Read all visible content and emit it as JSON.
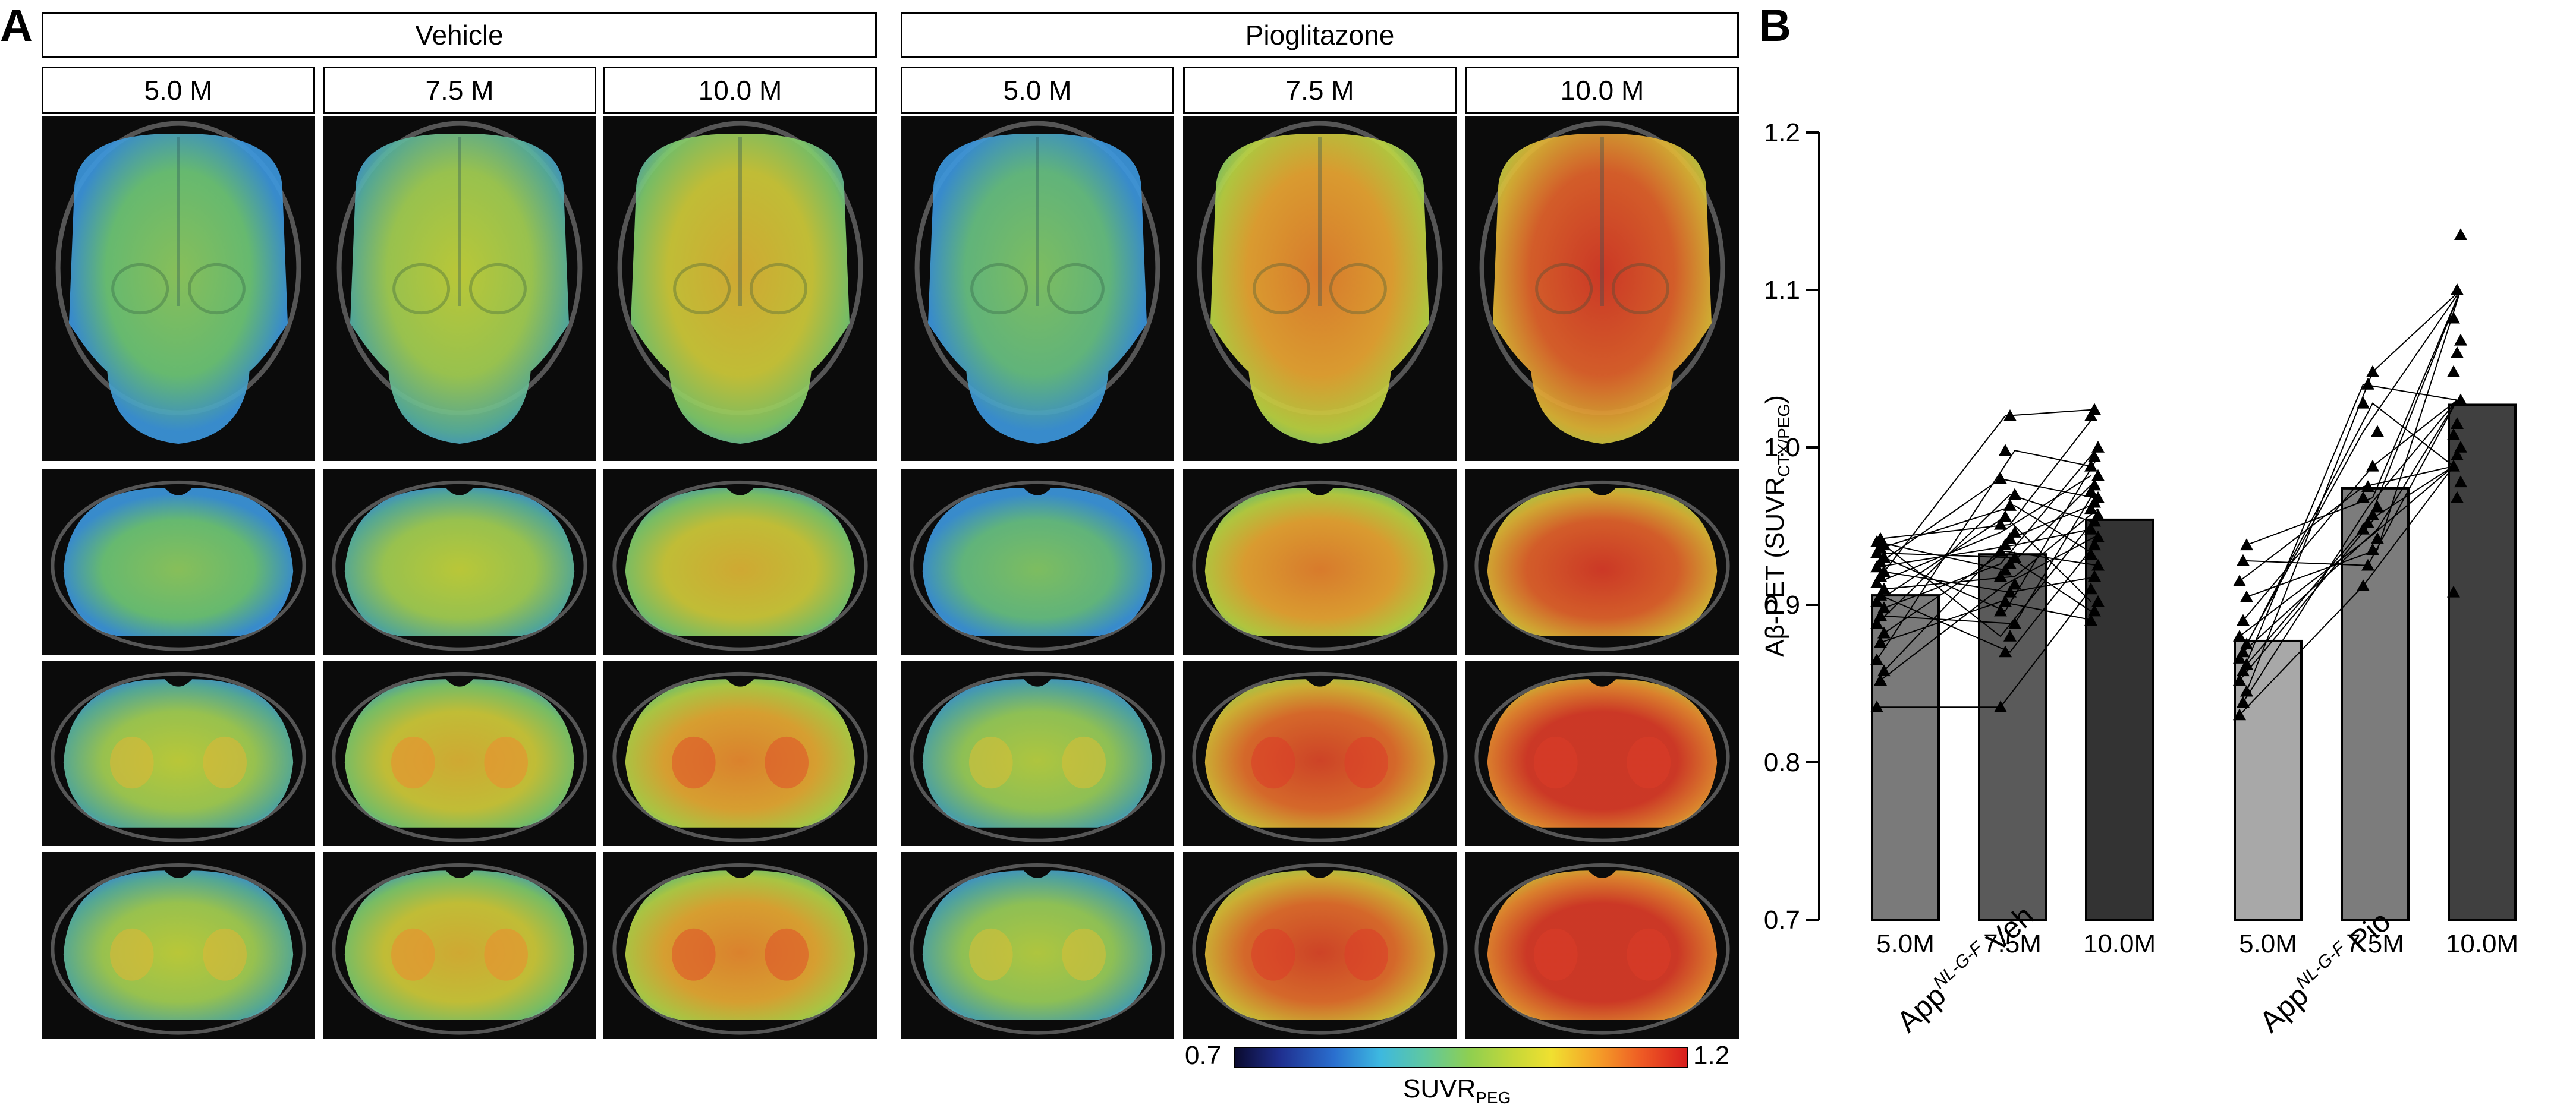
{
  "panel_a": {
    "letter": "A",
    "groups": [
      "Vehicle",
      "Pioglitazone"
    ],
    "timepoints": [
      "5.0 M",
      "7.5 M",
      "10.0 M",
      "5.0 M",
      "7.5 M",
      "10.0 M"
    ],
    "colorbar": {
      "min": "0.7",
      "max": "1.2",
      "label": "SUVR",
      "label_sub": "PEG"
    }
  },
  "panel_b": {
    "letter": "B"
  },
  "chart_data": {
    "type": "bar",
    "ylabel_main": "Aβ-PET (SUVR",
    "ylabel_sub": "CTX/PEG",
    "ylabel_end": ")",
    "ylim": [
      0.7,
      1.2
    ],
    "yticks": [
      "0.7",
      "0.8",
      "0.9",
      "1.0",
      "1.1",
      "1.2"
    ],
    "categories": [
      "5.0M",
      "7.5M",
      "10.0M",
      "5.0M",
      "7.5M",
      "10.0M"
    ],
    "group_labels": [
      {
        "main": "App",
        "sup": "NL-G-F",
        "rest": " Veh"
      },
      {
        "main": "App",
        "sup": "NL-G-F",
        "rest": " Pio"
      }
    ],
    "values": [
      0.906,
      0.932,
      0.954,
      0.877,
      0.974,
      1.027
    ],
    "bar_colors": [
      "#7a7a7a",
      "#5a5a5a",
      "#333333",
      "#a8a8a8",
      "#7c7c7c",
      "#404040"
    ],
    "individual_points": [
      {
        "group": "Veh",
        "5.0M": [
          0.835,
          0.852,
          0.858,
          0.865,
          0.876,
          0.882,
          0.888,
          0.893,
          0.898,
          0.902,
          0.906,
          0.91,
          0.914,
          0.918,
          0.921,
          0.924,
          0.927,
          0.93,
          0.933,
          0.936,
          0.938,
          0.94,
          0.942
        ],
        "7.5M": [
          0.835,
          0.87,
          0.88,
          0.888,
          0.896,
          0.902,
          0.908,
          0.913,
          0.918,
          0.922,
          0.926,
          0.93,
          0.934,
          0.938,
          0.942,
          0.946,
          0.951,
          0.956,
          0.963,
          0.97,
          0.98,
          0.998,
          1.02
        ],
        "10.0M": [
          0.89,
          0.896,
          0.902,
          0.91,
          0.918,
          0.925,
          0.932,
          0.938,
          0.943,
          0.948,
          0.953,
          0.957,
          0.961,
          0.965,
          0.968,
          0.972,
          0.976,
          0.982,
          0.988,
          0.994,
          1.0,
          1.02,
          1.024
        ]
      },
      {
        "group": "Pio",
        "5.0M": [
          0.83,
          0.838,
          0.845,
          0.852,
          0.858,
          0.862,
          0.866,
          0.87,
          0.875,
          0.88,
          0.89,
          0.905,
          0.915,
          0.928,
          0.938
        ],
        "7.5M": [
          0.912,
          0.925,
          0.935,
          0.942,
          0.948,
          0.952,
          0.957,
          0.962,
          0.968,
          0.975,
          0.988,
          1.01,
          1.028,
          1.04,
          1.048
        ],
        "10.0M": [
          0.908,
          0.968,
          0.978,
          0.988,
          0.995,
          1.0,
          1.008,
          1.015,
          1.03,
          1.048,
          1.06,
          1.068,
          1.082,
          1.1,
          1.135
        ]
      }
    ]
  }
}
